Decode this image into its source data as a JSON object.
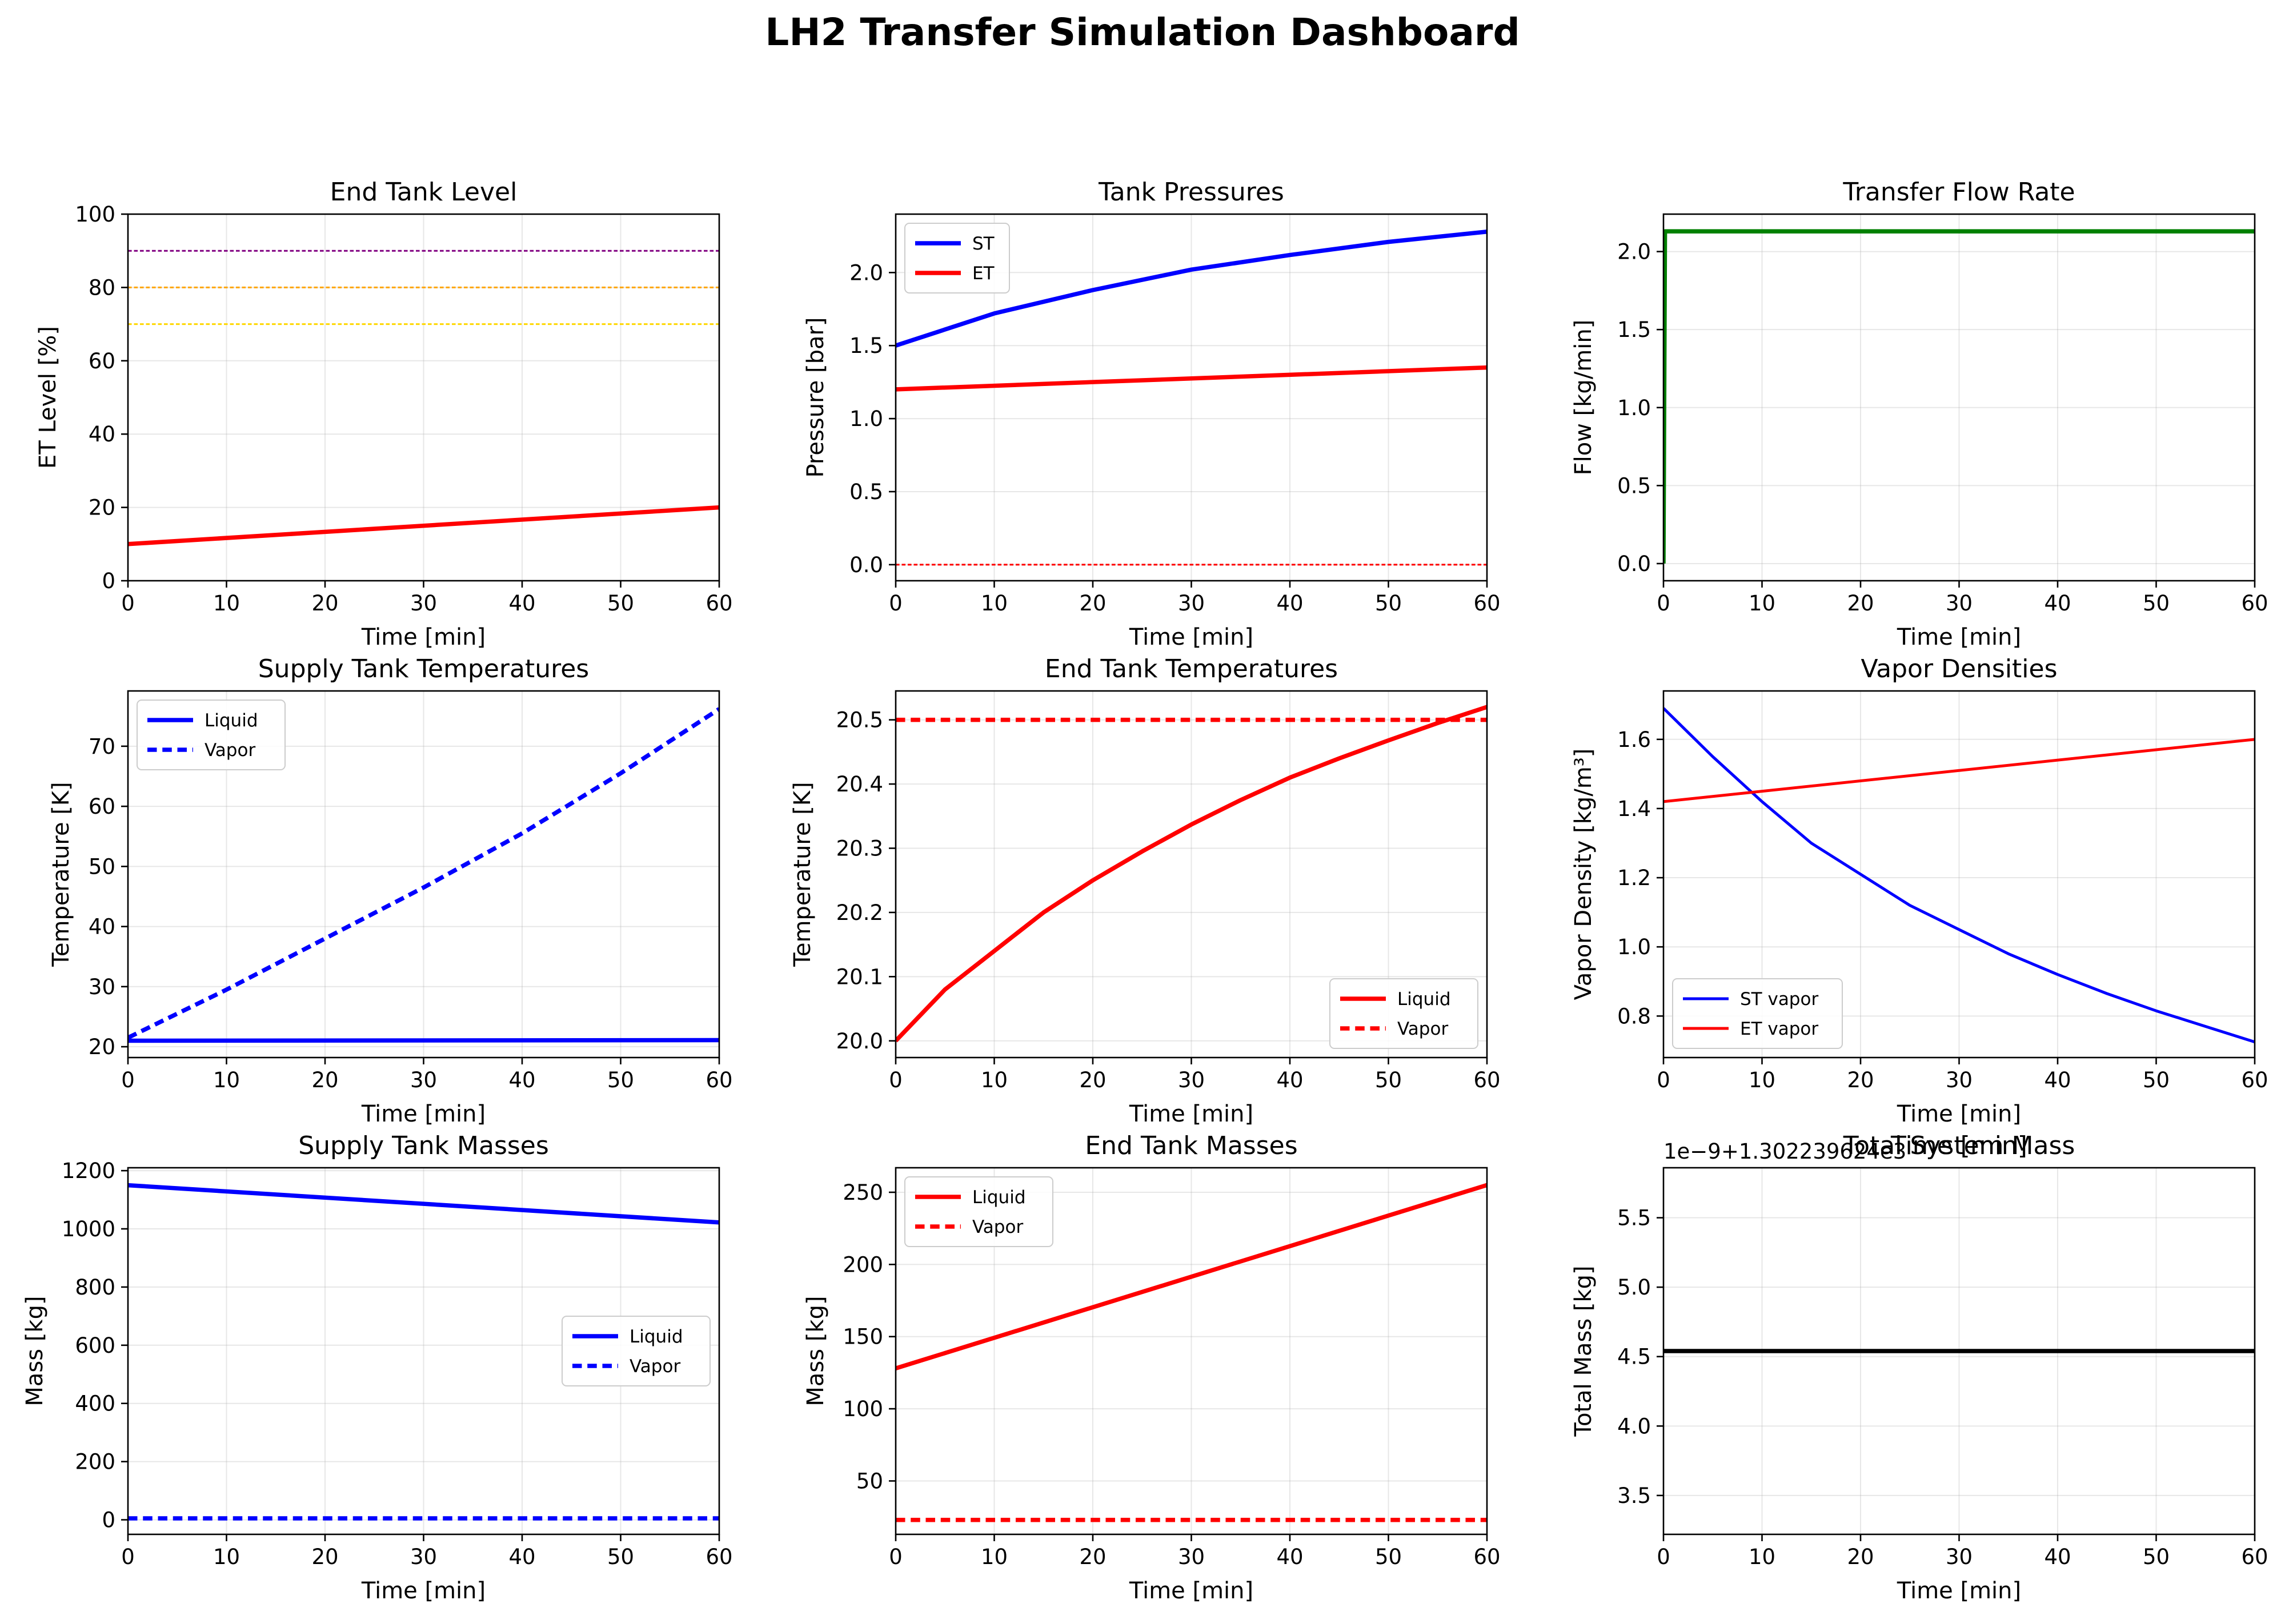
{
  "title": "LH2 Transfer Simulation Dashboard",
  "chart_data": [
    {
      "type": "line",
      "title": "End Tank Level",
      "xlabel": "Time [min]",
      "ylabel": "ET Level [%]",
      "xlim": [
        0,
        60
      ],
      "ylim": [
        0,
        100
      ],
      "xticks": [
        0,
        10,
        20,
        30,
        40,
        50,
        60
      ],
      "yticks": [
        0,
        20,
        40,
        60,
        80,
        100
      ],
      "grid": true,
      "legend": null,
      "series": [
        {
          "color": "#ff0000",
          "style": "solid",
          "width": "thick",
          "x": [
            0,
            60
          ],
          "y": [
            10,
            20
          ]
        },
        {
          "color": "#800080",
          "style": "dashed",
          "width": "thin",
          "x": [
            0,
            60
          ],
          "y": [
            90,
            90
          ]
        },
        {
          "color": "#ffa500",
          "style": "dashed",
          "width": "thin",
          "x": [
            0,
            60
          ],
          "y": [
            80,
            80
          ]
        },
        {
          "color": "#ffd700",
          "style": "dashed",
          "width": "thin",
          "x": [
            0,
            60
          ],
          "y": [
            70,
            70
          ]
        }
      ]
    },
    {
      "type": "line",
      "title": "Tank Pressures",
      "xlabel": "Time [min]",
      "ylabel": "Pressure [bar]",
      "xlim": [
        0,
        60
      ],
      "ylim": [
        -0.11,
        2.4
      ],
      "xticks": [
        0,
        10,
        20,
        30,
        40,
        50,
        60
      ],
      "yticks": [
        0.0,
        0.5,
        1.0,
        1.5,
        2.0
      ],
      "ytick_format": 1,
      "grid": true,
      "legend": "upper left",
      "series": [
        {
          "name": "ST",
          "color": "#0000ff",
          "style": "solid",
          "width": "thick",
          "x": [
            0,
            10,
            20,
            30,
            40,
            50,
            60
          ],
          "y": [
            1.5,
            1.72,
            1.88,
            2.02,
            2.12,
            2.21,
            2.28
          ]
        },
        {
          "name": "ET",
          "color": "#ff0000",
          "style": "solid",
          "width": "thick",
          "x": [
            0,
            60
          ],
          "y": [
            1.2,
            1.35
          ]
        },
        {
          "color": "#ff0000",
          "style": "dashed",
          "width": "thin",
          "x": [
            0,
            60
          ],
          "y": [
            0,
            0
          ]
        }
      ]
    },
    {
      "type": "line",
      "title": "Transfer Flow Rate",
      "xlabel": "Time [min]",
      "ylabel": "Flow [kg/min]",
      "xlim": [
        0,
        60
      ],
      "ylim": [
        -0.11,
        2.24
      ],
      "xticks": [
        0,
        10,
        20,
        30,
        40,
        50,
        60
      ],
      "yticks": [
        0.0,
        0.5,
        1.0,
        1.5,
        2.0
      ],
      "ytick_format": 1,
      "grid": true,
      "legend": null,
      "series": [
        {
          "color": "#008000",
          "style": "solid",
          "width": "thick",
          "x": [
            0,
            0.15,
            60
          ],
          "y": [
            0,
            2.13,
            2.13
          ]
        }
      ]
    },
    {
      "type": "line",
      "title": "Supply Tank Temperatures",
      "xlabel": "Time [min]",
      "ylabel": "Temperature [K]",
      "xlim": [
        0,
        60
      ],
      "ylim": [
        18.2,
        79.2
      ],
      "xticks": [
        0,
        10,
        20,
        30,
        40,
        50,
        60
      ],
      "yticks": [
        20,
        30,
        40,
        50,
        60,
        70
      ],
      "grid": true,
      "legend": "upper left",
      "series": [
        {
          "name": "Liquid",
          "color": "#0000ff",
          "style": "solid",
          "width": "thick",
          "x": [
            0,
            60
          ],
          "y": [
            21,
            21.1
          ]
        },
        {
          "name": "Vapor",
          "color": "#0000ff",
          "style": "dashed",
          "width": "thick",
          "x": [
            0,
            10,
            20,
            30,
            40,
            50,
            60
          ],
          "y": [
            21.5,
            29.5,
            38,
            46.5,
            55.5,
            65.5,
            76.2
          ]
        }
      ]
    },
    {
      "type": "line",
      "title": "End Tank Temperatures",
      "xlabel": "Time [min]",
      "ylabel": "Temperature [K]",
      "xlim": [
        0,
        60
      ],
      "ylim": [
        19.974,
        20.545
      ],
      "xticks": [
        0,
        10,
        20,
        30,
        40,
        50,
        60
      ],
      "yticks": [
        20.0,
        20.1,
        20.2,
        20.3,
        20.4,
        20.5
      ],
      "ytick_format": 1,
      "grid": true,
      "legend": "lower right",
      "series": [
        {
          "name": "Liquid",
          "color": "#ff0000",
          "style": "solid",
          "width": "thick",
          "x": [
            0,
            5,
            10,
            15,
            20,
            25,
            30,
            35,
            40,
            45,
            50,
            55,
            60
          ],
          "y": [
            20.0,
            20.08,
            20.14,
            20.2,
            20.25,
            20.295,
            20.337,
            20.375,
            20.41,
            20.44,
            20.468,
            20.495,
            20.52
          ]
        },
        {
          "name": "Vapor",
          "color": "#ff0000",
          "style": "dashed",
          "width": "thick",
          "x": [
            0,
            60
          ],
          "y": [
            20.5,
            20.5
          ]
        }
      ]
    },
    {
      "type": "line",
      "title": "Vapor Densities",
      "xlabel": "Time [min]",
      "ylabel": "Vapor Density [kg/m³]",
      "xlim": [
        0,
        60
      ],
      "ylim": [
        0.68,
        1.74
      ],
      "xticks": [
        0,
        10,
        20,
        30,
        40,
        50,
        60
      ],
      "yticks": [
        0.8,
        1.0,
        1.2,
        1.4,
        1.6
      ],
      "ytick_format": 1,
      "grid": true,
      "legend": "lower left",
      "series": [
        {
          "name": "ST vapor",
          "color": "#0000ff",
          "style": "solid",
          "width": "medium",
          "x": [
            0,
            5,
            10,
            15,
            20,
            25,
            30,
            35,
            40,
            45,
            50,
            55,
            60
          ],
          "y": [
            1.69,
            1.55,
            1.42,
            1.3,
            1.21,
            1.12,
            1.05,
            0.98,
            0.92,
            0.865,
            0.815,
            0.77,
            0.725
          ]
        },
        {
          "name": "ET vapor",
          "color": "#ff0000",
          "style": "solid",
          "width": "medium",
          "x": [
            0,
            60
          ],
          "y": [
            1.42,
            1.6
          ]
        }
      ]
    },
    {
      "type": "line",
      "title": "Supply Tank Masses",
      "xlabel": "Time [min]",
      "ylabel": "Mass [kg]",
      "xlim": [
        0,
        60
      ],
      "ylim": [
        -50,
        1210
      ],
      "xticks": [
        0,
        10,
        20,
        30,
        40,
        50,
        60
      ],
      "yticks": [
        0,
        200,
        400,
        600,
        800,
        1000,
        1200
      ],
      "grid": true,
      "legend": "center right",
      "series": [
        {
          "name": "Liquid",
          "color": "#0000ff",
          "style": "solid",
          "width": "thick",
          "x": [
            0,
            60
          ],
          "y": [
            1150,
            1022
          ]
        },
        {
          "name": "Vapor",
          "color": "#0000ff",
          "style": "dashed",
          "width": "thick",
          "x": [
            0,
            60
          ],
          "y": [
            5,
            5
          ]
        }
      ]
    },
    {
      "type": "line",
      "title": "End Tank Masses",
      "xlabel": "Time [min]",
      "ylabel": "Mass [kg]",
      "xlim": [
        0,
        60
      ],
      "ylim": [
        13,
        267
      ],
      "xticks": [
        0,
        10,
        20,
        30,
        40,
        50,
        60
      ],
      "yticks": [
        50,
        100,
        150,
        200,
        250
      ],
      "grid": true,
      "legend": "upper left",
      "series": [
        {
          "name": "Liquid",
          "color": "#ff0000",
          "style": "solid",
          "width": "thick",
          "x": [
            0,
            60
          ],
          "y": [
            128,
            255
          ]
        },
        {
          "name": "Vapor",
          "color": "#ff0000",
          "style": "dashed",
          "width": "thick",
          "x": [
            0,
            60
          ],
          "y": [
            23,
            23
          ]
        }
      ]
    },
    {
      "type": "line",
      "title": "Total System Mass",
      "overlapping_label": "Time [min]",
      "xlabel": "Time [min]",
      "ylabel": "Total Mass [kg]",
      "offset_text": "1e−9+1.302239624e3",
      "xlim": [
        0,
        60
      ],
      "ylim": [
        3.22,
        5.86
      ],
      "xticks": [
        0,
        10,
        20,
        30,
        40,
        50,
        60
      ],
      "yticks": [
        3.5,
        4.0,
        4.5,
        5.0,
        5.5
      ],
      "ytick_format": 1,
      "grid": true,
      "legend": null,
      "series": [
        {
          "color": "#000000",
          "style": "solid",
          "width": "thick",
          "x": [
            0,
            60
          ],
          "y": [
            4.54,
            4.54
          ]
        }
      ]
    }
  ]
}
